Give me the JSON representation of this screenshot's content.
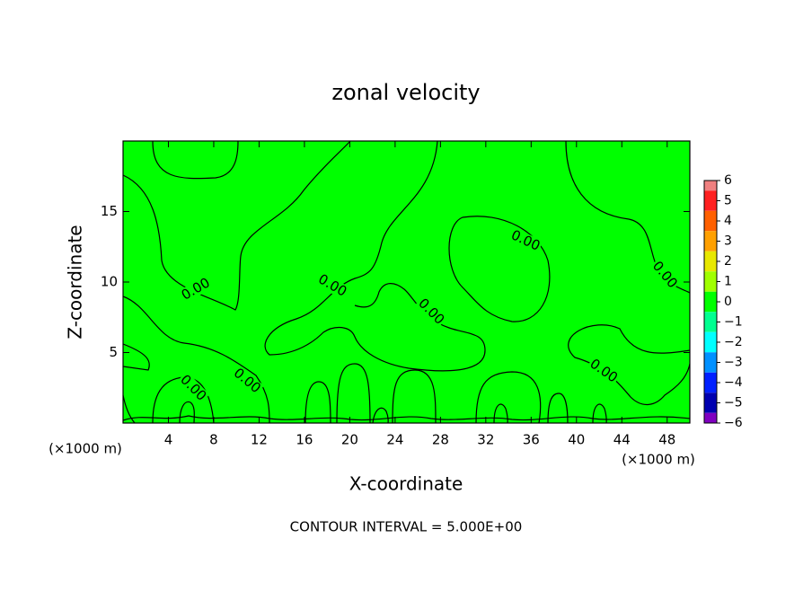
{
  "chart_data": {
    "type": "contour",
    "title": "zonal velocity",
    "x_label": "X-coordinate",
    "y_label": "Z-coordinate",
    "x_unit_label": "(×1000 m)",
    "footer": "CONTOUR INTERVAL = 5.000E+00",
    "contour_label": "0.00",
    "xlim": [
      0,
      50
    ],
    "xticks": [
      4,
      8,
      12,
      16,
      20,
      24,
      28,
      32,
      36,
      40,
      44,
      48
    ],
    "ylim": [
      0,
      20
    ],
    "yticks": [
      5,
      10,
      15
    ],
    "field_color": "#00ff00",
    "colorbar": {
      "ticks": [
        6,
        5,
        4,
        3,
        2,
        1,
        0,
        {
          "value": -1,
          "label": "−1"
        },
        {
          "value": -2,
          "label": "−2"
        },
        {
          "value": -3,
          "label": "−3"
        },
        {
          "value": -4,
          "label": "−4"
        },
        {
          "value": -5,
          "label": "−5"
        },
        {
          "value": -6,
          "label": "−6"
        }
      ],
      "colors": [
        "#f08080",
        "#ff2020",
        "#ff6000",
        "#ffa000",
        "#e8e800",
        "#a0ff00",
        "#00ff00",
        "#00ff90",
        "#00ffff",
        "#0090ff",
        "#0020ff",
        "#0000b0",
        "#8000c0"
      ]
    }
  }
}
